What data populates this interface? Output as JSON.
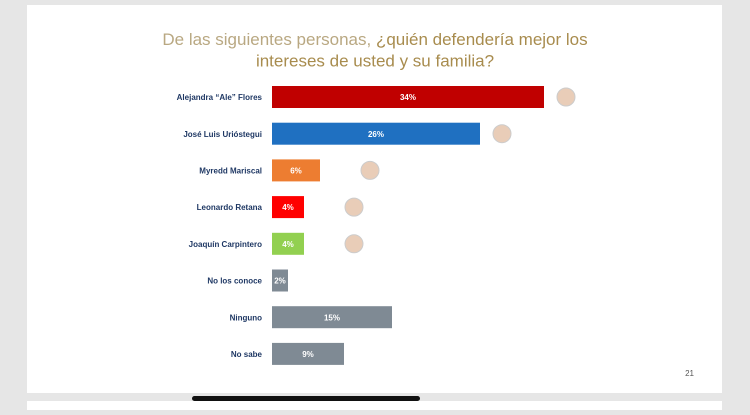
{
  "chart_data": {
    "type": "bar",
    "orientation": "horizontal",
    "title": {
      "prefix": "De las siguientes personas, ",
      "line1": "¿quién defendería mejor los",
      "line2": "intereses de usted y su familia?"
    },
    "categories": [
      "Alejandra “Ale” Flores",
      "José Luis Urióstegui",
      "Myredd Mariscal",
      "Leonardo Retana",
      "Joaquín Carpintero",
      "No los conoce",
      "Ninguno",
      "No sabe"
    ],
    "values": [
      34,
      26,
      6,
      4,
      4,
      2,
      15,
      9
    ],
    "value_labels": [
      "34%",
      "26%",
      "6%",
      "4%",
      "4%",
      "2%",
      "15%",
      "9%"
    ],
    "colors": [
      "#c00000",
      "#1f70c1",
      "#ed7d31",
      "#ff0000",
      "#92d050",
      "#7f8a94",
      "#7f8a94",
      "#7f8a94"
    ],
    "page_number": "21"
  }
}
